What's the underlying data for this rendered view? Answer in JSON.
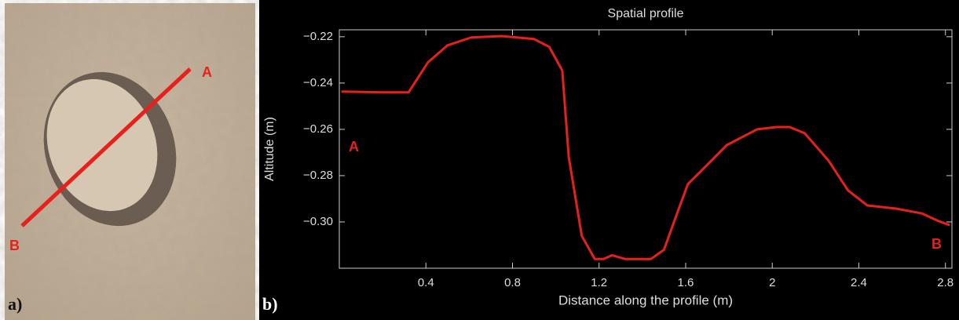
{
  "panel_labels": [
    "a)",
    "b)"
  ],
  "photo_labels": [
    "A",
    "B"
  ],
  "chart_data": {
    "type": "line",
    "title": "Spatial profile",
    "x_label": "Distance along the profile (m)",
    "y_label": "Altitude (m)",
    "annotations": [
      "A",
      "B"
    ],
    "xlim": [
      0,
      2.83
    ],
    "ylim": [
      -0.32,
      -0.217
    ],
    "xticks": [
      0.4,
      0.8,
      1.2,
      1.6,
      2,
      2.4,
      2.8
    ],
    "yticks": [
      {
        "value": -0.22,
        "label": "−0.22"
      },
      {
        "value": -0.24,
        "label": "−0.24"
      },
      {
        "value": -0.26,
        "label": "−0.26"
      },
      {
        "value": -0.28,
        "label": "−0.28"
      },
      {
        "value": -0.3,
        "label": "−0.30"
      }
    ],
    "x": [
      0.01,
      0.21,
      0.32,
      0.41,
      0.5,
      0.61,
      0.75,
      0.9,
      0.97,
      1.03,
      1.06,
      1.12,
      1.18,
      1.22,
      1.26,
      1.32,
      1.44,
      1.5,
      1.55,
      1.61,
      1.7,
      1.79,
      1.86,
      1.93,
      2.02,
      2.08,
      2.15,
      2.26,
      2.35,
      2.44,
      2.57,
      2.69,
      2.77,
      2.82
    ],
    "series": [
      {
        "color": "#e8201c",
        "values": [
          -0.2437,
          -0.244,
          -0.244,
          -0.231,
          -0.2237,
          -0.2203,
          -0.2197,
          -0.221,
          -0.2244,
          -0.2346,
          -0.272,
          -0.306,
          -0.316,
          -0.316,
          -0.3144,
          -0.316,
          -0.316,
          -0.312,
          -0.299,
          -0.2837,
          -0.2753,
          -0.2668,
          -0.2634,
          -0.26,
          -0.259,
          -0.259,
          -0.2617,
          -0.2735,
          -0.2864,
          -0.2929,
          -0.2942,
          -0.2963,
          -0.2997,
          -0.3014
        ]
      }
    ]
  }
}
